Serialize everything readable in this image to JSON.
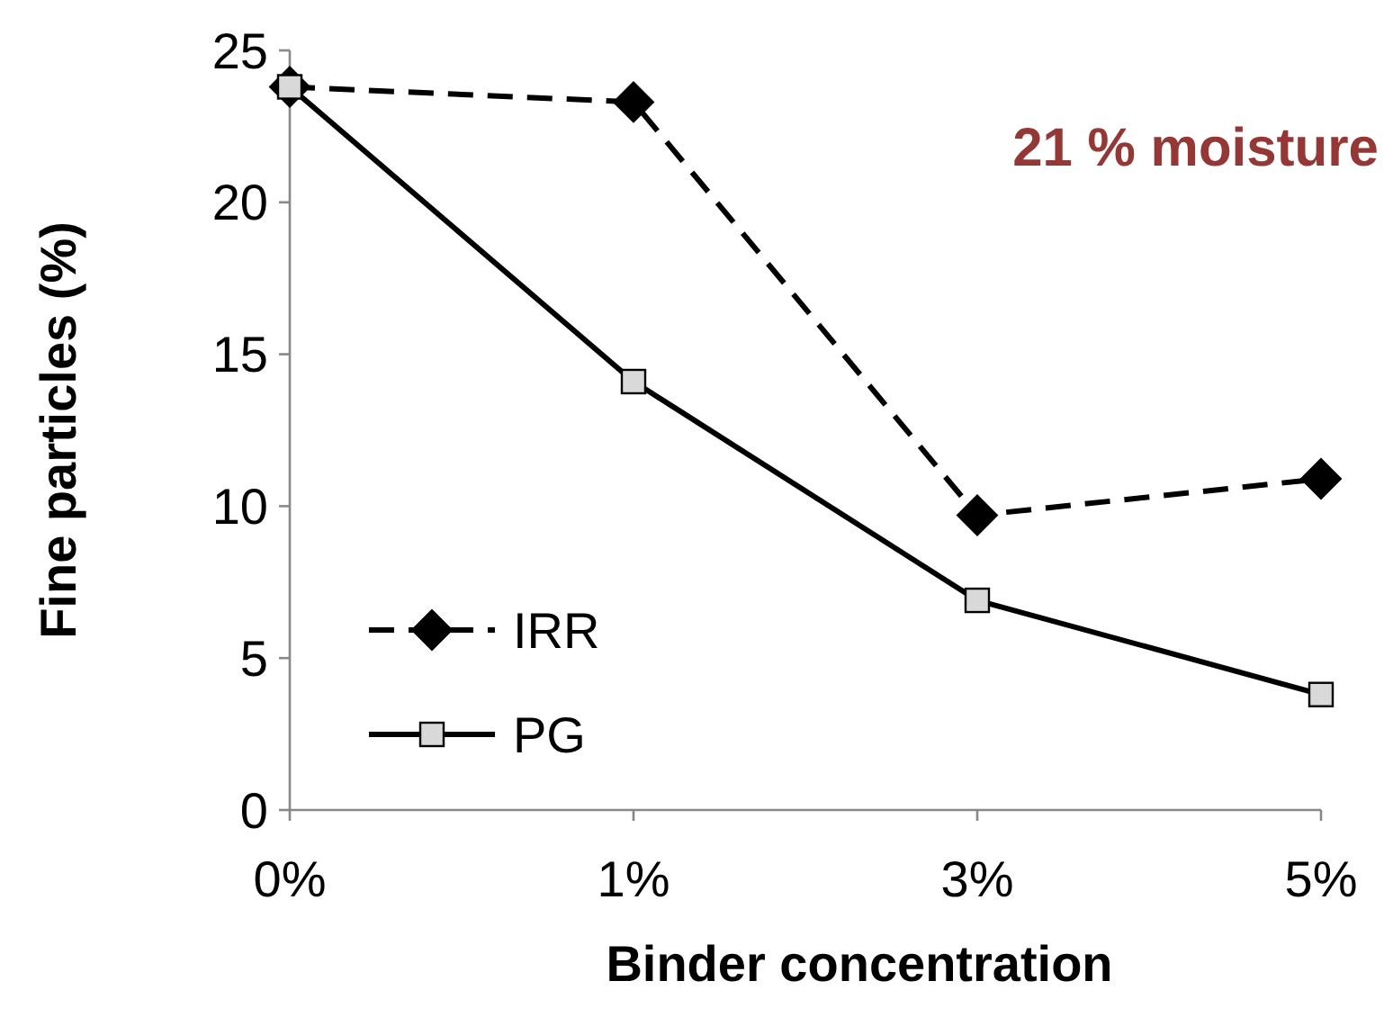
{
  "chart_data": {
    "type": "line",
    "xlabel": "Binder concentration",
    "ylabel": "Fine particles (%)",
    "categories": [
      "0%",
      "1%",
      "3%",
      "5%"
    ],
    "series": [
      {
        "name": "IRR",
        "color": "#000000",
        "values": [
          23.8,
          23.3,
          9.7,
          10.9
        ],
        "marker": "diamond",
        "line_style": "dashed"
      },
      {
        "name": "PG",
        "color": "#000000",
        "values": [
          23.8,
          14.1,
          6.9,
          3.8
        ],
        "marker": "square",
        "line_style": "solid"
      }
    ],
    "ylim": [
      0,
      25
    ],
    "yticks": [
      0,
      5,
      10,
      15,
      20,
      25
    ],
    "grid": false,
    "legend": "left",
    "annotations": [
      "21 % moisture"
    ]
  }
}
